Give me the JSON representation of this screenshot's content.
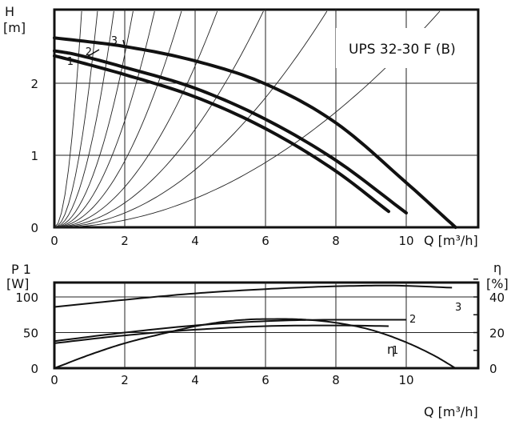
{
  "chart_data": [
    {
      "type": "line",
      "id": "head",
      "model_label": "UPS 32-30 F (B)",
      "ylabel_top": "H",
      "ylabel_bottom": "[m]",
      "xlabel": "Q [m³/h]",
      "xlim": [
        0,
        12
      ],
      "ylim": [
        0,
        3
      ],
      "xticks": [
        "0",
        "2",
        "4",
        "6",
        "8",
        "10"
      ],
      "yticks": [
        "0",
        "1",
        "2"
      ],
      "grid": true,
      "series": [
        {
          "name": "1",
          "x": [
            0.0,
            0.5,
            2,
            4,
            6,
            8,
            9.5
          ],
          "y": [
            2.38,
            2.32,
            2.12,
            1.81,
            1.37,
            0.78,
            0.22
          ]
        },
        {
          "name": "2",
          "x": [
            0.0,
            0.5,
            2,
            4,
            6,
            8,
            10
          ],
          "y": [
            2.45,
            2.41,
            2.22,
            1.93,
            1.5,
            0.93,
            0.2
          ]
        },
        {
          "name": "3",
          "x": [
            0.0,
            2,
            4,
            6,
            8,
            10,
            11.4
          ],
          "y": [
            2.63,
            2.51,
            2.31,
            1.99,
            1.45,
            0.62,
            0.0
          ]
        }
      ],
      "system_curves_k": [
        5.0,
        2.0,
        1.05,
        0.6,
        0.37,
        0.23,
        0.14,
        0.085,
        0.05,
        0.025
      ]
    },
    {
      "type": "line",
      "id": "power",
      "ylabel_top": "P 1",
      "ylabel_bottom": "[W]",
      "y2label_top": "η",
      "y2label_bottom": "[%]",
      "xlabel": "Q [m³/h]",
      "xlim": [
        0,
        12
      ],
      "ylim": [
        0,
        150
      ],
      "y2lim": [
        0,
        60
      ],
      "xticks": [
        "0",
        "2",
        "4",
        "6",
        "8",
        "10"
      ],
      "yticks": [
        "0",
        "50",
        "100"
      ],
      "y2ticks": [
        "0",
        "20",
        "40"
      ],
      "grid": true,
      "series": [
        {
          "name": "1",
          "x": [
            0,
            2,
            4,
            6,
            8,
            9.5
          ],
          "y": [
            35,
            46,
            54,
            59,
            60,
            59
          ]
        },
        {
          "name": "2",
          "x": [
            0,
            2,
            4,
            6,
            8,
            10
          ],
          "y": [
            38,
            50,
            60,
            66,
            68,
            68
          ]
        },
        {
          "name": "3",
          "x": [
            0,
            2,
            4,
            6,
            8,
            9.5,
            11.3
          ],
          "y": [
            86,
            96,
            105,
            111,
            115,
            116,
            113
          ]
        },
        {
          "name": "η",
          "axis": "y2",
          "x": [
            0,
            1,
            2,
            3,
            4,
            5,
            6,
            7,
            8,
            9,
            10,
            10.8,
            11.4
          ],
          "y": [
            0,
            7.5,
            14,
            19,
            23.5,
            26.5,
            27.6,
            27.4,
            25.5,
            21.5,
            14.5,
            7,
            0
          ]
        }
      ]
    }
  ]
}
